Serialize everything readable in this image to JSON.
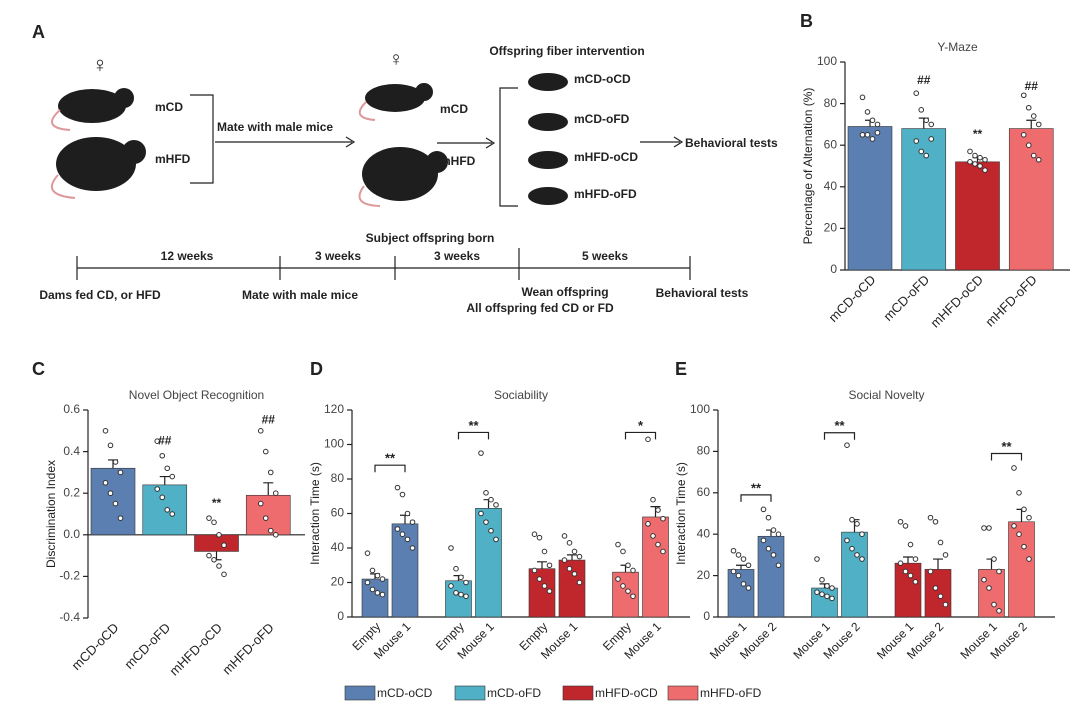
{
  "diagram": {
    "panel": "A",
    "female_1": "♀",
    "female_2": "♀",
    "dam_cd": "mCD",
    "dam_hfd": "mHFD",
    "mate": "Mate with male mice",
    "offspring_cd": "mCD",
    "offspring_hfd": "mHFD",
    "intervention": "Offspring fiber intervention",
    "groups": [
      "mCD-oCD",
      "mCD-oFD",
      "mHFD-oCD",
      "mHFD-oFD"
    ],
    "outcome": "Behavioral tests",
    "timeline": {
      "periods": [
        "12 weeks",
        "3 weeks",
        "3 weeks",
        "5 weeks"
      ],
      "born": "Subject offspring born",
      "events": [
        "Dams fed CD, or HFD",
        "Mate with male mice",
        "Wean offspring",
        "Behavioral tests"
      ],
      "wean_note": "All offspring fed CD or FD"
    }
  },
  "chart_data": [
    {
      "type": "bar",
      "panel": "B",
      "title": "Y-Maze",
      "y_label": "Percentage of Alternation (%)",
      "categories": [
        "mCD-oCD",
        "mCD-oFD",
        "mHFD-oCD",
        "mHFD-oFD"
      ],
      "values": [
        69,
        68,
        52,
        68
      ],
      "errors": [
        3,
        5,
        2,
        4
      ],
      "colors": [
        "#5b7fb0",
        "#4fb0c6",
        "#c0272d",
        "#ee6b6e"
      ],
      "points": [
        [
          83,
          76,
          72,
          70,
          65,
          65,
          63,
          66
        ],
        [
          85,
          77,
          72,
          70,
          62,
          57,
          55,
          63
        ],
        [
          57,
          55,
          54,
          53,
          52,
          51,
          50,
          48
        ],
        [
          84,
          78,
          74,
          70,
          65,
          60,
          55,
          53
        ]
      ],
      "ylim": [
        0,
        100
      ],
      "yticks": [
        0,
        20,
        40,
        60,
        80,
        100
      ],
      "annotations": [
        {
          "text": "##",
          "category": 1,
          "y": 91
        },
        {
          "text": "**",
          "category": 2,
          "y": 65
        },
        {
          "text": "##",
          "category": 3,
          "y": 88
        }
      ]
    },
    {
      "type": "bar",
      "panel": "C",
      "title": "Novel Object Recognition",
      "y_label": "Discrimination Index",
      "categories": [
        "mCD-oCD",
        "mCD-oFD",
        "mHFD-oCD",
        "mHFD-oFD"
      ],
      "values": [
        0.32,
        0.24,
        -0.08,
        0.19
      ],
      "errors": [
        0.04,
        0.04,
        0.04,
        0.06
      ],
      "colors": [
        "#5b7fb0",
        "#4fb0c6",
        "#c0272d",
        "#ee6b6e"
      ],
      "points": [
        [
          0.5,
          0.43,
          0.35,
          0.3,
          0.25,
          0.2,
          0.15,
          0.08
        ],
        [
          0.45,
          0.38,
          0.32,
          0.28,
          0.22,
          0.18,
          0.12,
          0.1
        ],
        [
          0.08,
          0.06,
          0,
          -0.05,
          -0.1,
          -0.12,
          -0.15,
          -0.19
        ],
        [
          0.5,
          0.4,
          0.3,
          0.2,
          0.15,
          0.08,
          0.02,
          0
        ]
      ],
      "ylim": [
        -0.4,
        0.6
      ],
      "yticks": [
        -0.4,
        -0.2,
        {
          "value": 0,
          "label": "0.0"
        },
        0.2,
        0.4,
        0.6
      ],
      "annotations": [
        {
          "text": "##",
          "category": 1,
          "y": 0.45
        },
        {
          "text": "**",
          "category": 2,
          "y": 0.15
        },
        {
          "text": "##",
          "category": 3,
          "y": 0.55
        }
      ]
    },
    {
      "type": "grouped_bar",
      "panel": "D",
      "title": "Sociability",
      "y_label": "Interaction Time (s)",
      "categories": [
        "Empty",
        "Mouse 1",
        "Empty",
        "Mouse 1",
        "Empty",
        "Mouse 1",
        "Empty",
        "Mouse 1"
      ],
      "series": [
        {
          "name": "mCD-oCD",
          "color": "#5b7fb0",
          "values": [
            22,
            54,
            null,
            null,
            null,
            null,
            null,
            null
          ],
          "errors": [
            3,
            5,
            null,
            null,
            null,
            null,
            null,
            null
          ],
          "points": [
            [
              37,
              27,
              24,
              22,
              20,
              16,
              14,
              13
            ],
            [
              75,
              71,
              60,
              55,
              51,
              48,
              45,
              40
            ],
            null,
            null,
            null,
            null,
            null,
            null
          ]
        },
        {
          "name": "mCD-oFD",
          "color": "#4fb0c6",
          "values": [
            null,
            null,
            21,
            63,
            null,
            null,
            null,
            null
          ],
          "errors": [
            null,
            null,
            3,
            5,
            null,
            null,
            null,
            null
          ],
          "points": [
            null,
            null,
            [
              40,
              28,
              23,
              20,
              18,
              14,
              13,
              12
            ],
            [
              95,
              72,
              68,
              65,
              60,
              55,
              50,
              45
            ],
            null,
            null,
            null,
            null
          ]
        },
        {
          "name": "mHFD-oCD",
          "color": "#c0272d",
          "values": [
            null,
            null,
            null,
            null,
            28,
            33,
            null,
            null
          ],
          "errors": [
            null,
            null,
            null,
            null,
            4,
            3,
            null,
            null
          ],
          "points": [
            null,
            null,
            null,
            null,
            [
              48,
              46,
              38,
              30,
              27,
              22,
              18,
              15
            ],
            [
              47,
              43,
              38,
              35,
              33,
              28,
              25,
              20
            ],
            null,
            null
          ]
        },
        {
          "name": "mHFD-oFD",
          "color": "#ee6b6e",
          "values": [
            null,
            null,
            null,
            null,
            null,
            null,
            26,
            58
          ],
          "errors": [
            null,
            null,
            null,
            null,
            null,
            null,
            4,
            6
          ],
          "points": [
            null,
            null,
            null,
            null,
            null,
            null,
            [
              42,
              38,
              30,
              27,
              22,
              18,
              15,
              12
            ],
            [
              103,
              68,
              62,
              57,
              54,
              47,
              42,
              38
            ]
          ]
        }
      ],
      "ylim": [
        0,
        120
      ],
      "yticks": [
        0,
        20,
        40,
        60,
        80,
        100,
        120
      ],
      "legend": "bottom",
      "annotations": [
        {
          "text": "**",
          "categories": [
            0,
            1
          ],
          "y": 88
        },
        {
          "text": "**",
          "categories": [
            2,
            3
          ],
          "y": 107
        },
        {
          "text": "*",
          "categories": [
            6,
            7
          ],
          "y": 107
        }
      ]
    },
    {
      "type": "grouped_bar",
      "panel": "E",
      "title": "Social Novelty",
      "y_label": "Interaction Time (s)",
      "categories": [
        "Mouse 1",
        "Mouse 2",
        "Mouse 1",
        "Mouse 2",
        "Mouse 1",
        "Mouse 2",
        "Mouse 1",
        "Mouse 2"
      ],
      "series": [
        {
          "name": "mCD-oCD",
          "color": "#5b7fb0",
          "values": [
            23,
            39,
            null,
            null,
            null,
            null,
            null,
            null
          ],
          "errors": [
            2,
            3,
            null,
            null,
            null,
            null,
            null,
            null
          ],
          "points": [
            [
              32,
              30,
              28,
              25,
              22,
              20,
              16,
              14
            ],
            [
              52,
              48,
              42,
              40,
              37,
              33,
              30,
              25
            ],
            null,
            null,
            null,
            null,
            null,
            null
          ]
        },
        {
          "name": "mCD-oFD",
          "color": "#4fb0c6",
          "values": [
            null,
            null,
            14,
            41,
            null,
            null,
            null,
            null
          ],
          "errors": [
            null,
            null,
            2,
            6,
            null,
            null,
            null,
            null
          ],
          "points": [
            null,
            null,
            [
              28,
              18,
              15,
              14,
              12,
              11,
              10,
              9
            ],
            [
              83,
              47,
              45,
              40,
              37,
              33,
              30,
              28
            ],
            null,
            null,
            null,
            null
          ]
        },
        {
          "name": "mHFD-oCD",
          "color": "#c0272d",
          "values": [
            null,
            null,
            null,
            null,
            26,
            23,
            null,
            null
          ],
          "errors": [
            null,
            null,
            null,
            null,
            3,
            5,
            null,
            null
          ],
          "points": [
            null,
            null,
            null,
            null,
            [
              46,
              44,
              35,
              28,
              26,
              22,
              20,
              17
            ],
            [
              48,
              46,
              36,
              30,
              22,
              14,
              10,
              6
            ],
            null,
            null
          ]
        },
        {
          "name": "mHFD-oFD",
          "color": "#ee6b6e",
          "values": [
            null,
            null,
            null,
            null,
            null,
            null,
            23,
            46
          ],
          "errors": [
            null,
            null,
            null,
            null,
            null,
            null,
            5,
            6
          ],
          "points": [
            null,
            null,
            null,
            null,
            null,
            null,
            [
              43,
              43,
              28,
              22,
              18,
              14,
              6,
              3
            ],
            [
              72,
              60,
              52,
              48,
              44,
              40,
              34,
              28
            ]
          ]
        }
      ],
      "ylim": [
        0,
        100
      ],
      "yticks": [
        0,
        20,
        40,
        60,
        80,
        100
      ],
      "annotations": [
        {
          "text": "**",
          "categories": [
            0,
            1
          ],
          "y": 59
        },
        {
          "text": "**",
          "categories": [
            2,
            3
          ],
          "y": 89
        },
        {
          "text": "**",
          "categories": [
            6,
            7
          ],
          "y": 79
        }
      ]
    }
  ]
}
